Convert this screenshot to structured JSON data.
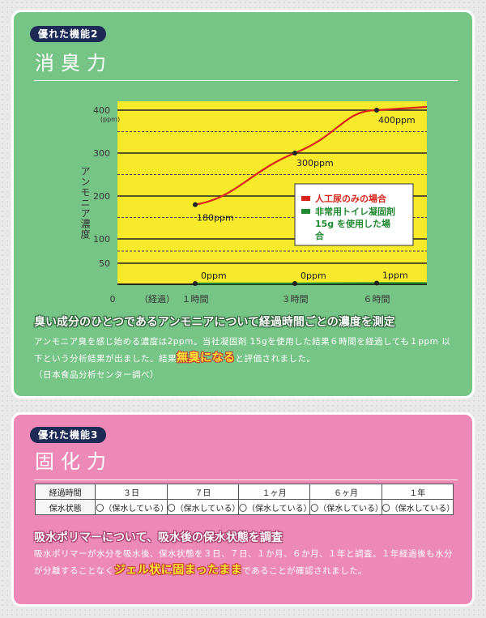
{
  "section1": {
    "tag": "優れた機能2",
    "title": "消臭力",
    "heading": "臭い成分のひとつであるアンモニアについて経過時間ごとの濃度を測定",
    "body_part1": "アンモニア臭を感じ始める濃度は2ppm。当社凝固剤 15gを使用した結果６時間を経過しても１ppm 以下という分析結果が出ました。結果",
    "emphasis": "無臭になる",
    "body_part2": "と評価されました。",
    "source": "（日本食品分析センター調べ）"
  },
  "chart_data": {
    "type": "line",
    "ylabel": "アンモニア濃度",
    "yunit": "(ppm)",
    "xlabel": "（経過）",
    "origin_label": "0",
    "x": [
      1,
      3,
      6
    ],
    "categories": [
      "１時間",
      "３時間",
      "６時間"
    ],
    "yticks": [
      50,
      100,
      200,
      300,
      400
    ],
    "ytick_labels": [
      "50",
      "100",
      "200",
      "300",
      "400"
    ],
    "dashed_grid": [
      75,
      150,
      250,
      350
    ],
    "ylim": [
      0,
      400
    ],
    "series": [
      {
        "name": "人工尿のみの場合",
        "color": "#d9241b",
        "values": [
          180,
          300,
          400
        ],
        "labels": [
          "180ppm",
          "300ppm",
          "400ppm"
        ]
      },
      {
        "name": "非常用トイレ凝固剤15gを使用した場合",
        "color": "#1f8a30",
        "values": [
          0,
          0,
          1
        ],
        "labels": [
          "0ppm",
          "0ppm",
          "1ppm"
        ]
      }
    ],
    "legend": [
      {
        "line1": "人工尿のみの場合",
        "line2": "",
        "line3": ""
      },
      {
        "line1": "非常用トイレ凝固剤",
        "line2": "15g を使用した場",
        "line3": "合"
      }
    ],
    "legend_position": "right"
  },
  "section2": {
    "tag": "優れた機能3",
    "title": "固化力",
    "table": {
      "header_label": "経過時間",
      "row_label": "保水状態",
      "columns": [
        "３日",
        "７日",
        "１ヶ月",
        "６ヶ月",
        "１年"
      ],
      "values": [
        "〇（保水している）",
        "〇（保水している）",
        "〇（保水している）",
        "〇（保水している）",
        "〇（保水している）"
      ]
    },
    "heading": "吸水ポリマーについて、吸水後の保水状態を調査",
    "body_part1": "吸水ポリマーが水分を吸水後、保水状態を３日、７日、１か月、６か月、１年と調査。１年経過後も水分が分離することなく",
    "emphasis": "ジェル状に固まったまま",
    "body_part2": "であることが確認されました。"
  }
}
